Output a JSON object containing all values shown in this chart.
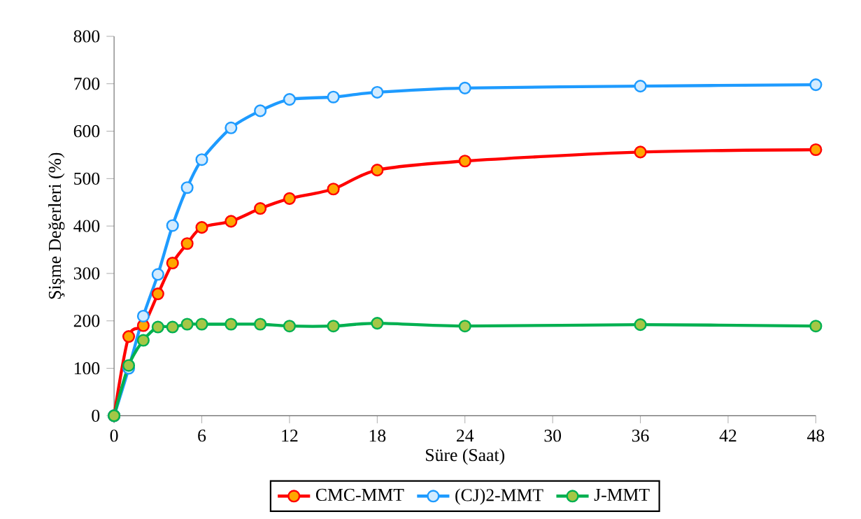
{
  "chart_data": {
    "type": "line",
    "xlabel": "Süre (Saat)",
    "ylabel": "Şişme Değerleri (%)",
    "x": [
      0,
      1,
      2,
      3,
      4,
      5,
      6,
      8,
      10,
      12,
      15,
      18,
      24,
      36,
      48
    ],
    "series": [
      {
        "name": "CMC-MMT",
        "color": "#ff0000",
        "values": [
          0,
          167,
          190,
          257,
          322,
          363,
          397,
          410,
          437,
          458,
          478,
          518,
          537,
          556,
          561
        ]
      },
      {
        "name": "(CJ)2-MMT",
        "color": "#1e9bff",
        "values": [
          0,
          100,
          210,
          298,
          401,
          481,
          540,
          607,
          643,
          667,
          672,
          682,
          691,
          695,
          698
        ]
      },
      {
        "name": "J-MMT",
        "color": "#00b050",
        "values": [
          0,
          106,
          159,
          187,
          187,
          193,
          193,
          193,
          193,
          189,
          189,
          195,
          189,
          192,
          189
        ]
      }
    ],
    "xlim": [
      0,
      48
    ],
    "xticks": [
      0,
      6,
      12,
      18,
      24,
      30,
      36,
      42,
      48
    ],
    "ylim": [
      0,
      800
    ],
    "yticks": [
      0,
      100,
      200,
      300,
      400,
      500,
      600,
      700,
      800
    ],
    "grid": false,
    "legend": "bottom",
    "marker": "circle",
    "line_style": "solid"
  }
}
